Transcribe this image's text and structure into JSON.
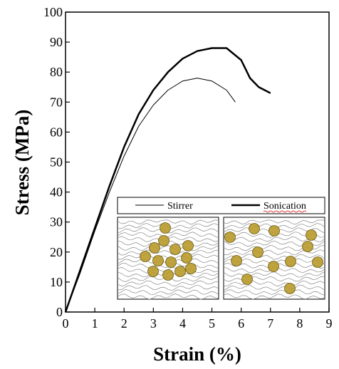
{
  "chart_data": {
    "type": "line",
    "x_label": "Strain (%)",
    "y_label": "Stress (MPa)",
    "xlim": [
      0,
      9
    ],
    "xticks": [
      0,
      1,
      2,
      3,
      4,
      5,
      6,
      7,
      8,
      9
    ],
    "ylim": [
      0,
      100
    ],
    "yticks": [
      0,
      10,
      20,
      30,
      40,
      50,
      60,
      70,
      80,
      90,
      100
    ],
    "series": [
      {
        "name": "Stirrer",
        "color": "#000000",
        "x": [
          0,
          0.5,
          1,
          1.5,
          2,
          2.5,
          3,
          3.5,
          4,
          4.5,
          5,
          5.5,
          5.8
        ],
        "values": [
          0,
          13,
          27,
          40,
          52,
          62,
          69,
          74,
          77,
          78,
          77,
          74,
          70
        ]
      },
      {
        "name": "Sonication",
        "color": "#000000",
        "x": [
          0,
          0.5,
          1,
          1.5,
          2,
          2.5,
          3,
          3.5,
          4,
          4.5,
          5,
          5.5,
          6,
          6.3,
          6.6,
          7
        ],
        "values": [
          0,
          14,
          28,
          42,
          55,
          66,
          74,
          80,
          84.5,
          87,
          88,
          88,
          84,
          78,
          75,
          73
        ]
      }
    ]
  }
}
